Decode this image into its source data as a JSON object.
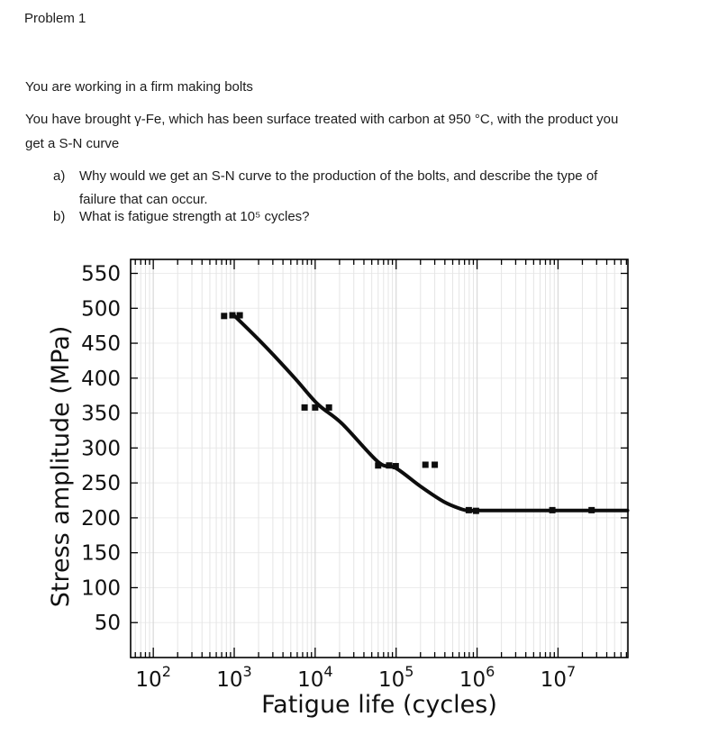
{
  "document": {
    "title": "Problem 1",
    "paragraph1": {
      "line1": "You are working in a firm making bolts"
    },
    "paragraph2": {
      "line1": "You have brought γ-Fe, which has been surface treated with carbon at 950 °C, with the product you",
      "line2": "get a S-N curve"
    },
    "list": {
      "item_a": {
        "marker": "a)",
        "line1": "Why would we get an S-N curve to the production of the bolts, and describe the type of",
        "line2": "failure that can occur."
      },
      "item_b": {
        "marker": "b)",
        "line1": "What is fatigue strength at 10⁵ cycles?"
      }
    }
  },
  "chart_data": {
    "type": "scatter",
    "title": "",
    "xlabel": "Fatigue life (cycles)",
    "ylabel": "Stress amplitude (MPa)",
    "x_scale": "log",
    "xlim": [
      52.5,
      73000000
    ],
    "ylim": [
      0,
      570
    ],
    "grid": true,
    "legend": "none",
    "y_ticks": [
      50,
      100,
      150,
      200,
      250,
      300,
      350,
      400,
      450,
      500,
      550
    ],
    "x_major_ticks": [
      {
        "value": 100,
        "base": "10",
        "exp": "2"
      },
      {
        "value": 1000,
        "base": "10",
        "exp": "3"
      },
      {
        "value": 10000,
        "base": "10",
        "exp": "4"
      },
      {
        "value": 100000,
        "base": "10",
        "exp": "5"
      },
      {
        "value": 1000000,
        "base": "10",
        "exp": "6"
      },
      {
        "value": 10000000,
        "base": "10",
        "exp": "7"
      }
    ],
    "scatter_points": [
      [
        750,
        489
      ],
      [
        950,
        490
      ],
      [
        1170,
        490
      ],
      [
        7400,
        358
      ],
      [
        10000,
        358
      ],
      [
        14800,
        358
      ],
      [
        60000,
        275
      ],
      [
        82000,
        275
      ],
      [
        99000,
        274
      ],
      [
        230000,
        276
      ],
      [
        300000,
        276
      ],
      [
        790000,
        211
      ],
      [
        970000,
        210
      ],
      [
        8500000,
        211
      ],
      [
        26000000,
        211
      ]
    ],
    "curve_points": [
      [
        970,
        491
      ],
      [
        2350,
        447
      ],
      [
        5600,
        400
      ],
      [
        10700,
        363
      ],
      [
        21400,
        335
      ],
      [
        60000,
        280
      ],
      [
        100000,
        271
      ],
      [
        200000,
        245
      ],
      [
        390000,
        223
      ],
      [
        660000,
        212
      ],
      [
        820000,
        210.6
      ],
      [
        1000000,
        210.5
      ],
      [
        3000000,
        210.5
      ],
      [
        72000000,
        210.5
      ]
    ],
    "fatigue_limit_mpa": 210,
    "colors": {
      "curve": "#0d0d0d",
      "marker": "#0d0d0d",
      "frame": "#000000",
      "grid_minor": "#e5e5e5",
      "grid_major": "#d8d8d8",
      "grid_horizontal": "#ececec"
    }
  }
}
